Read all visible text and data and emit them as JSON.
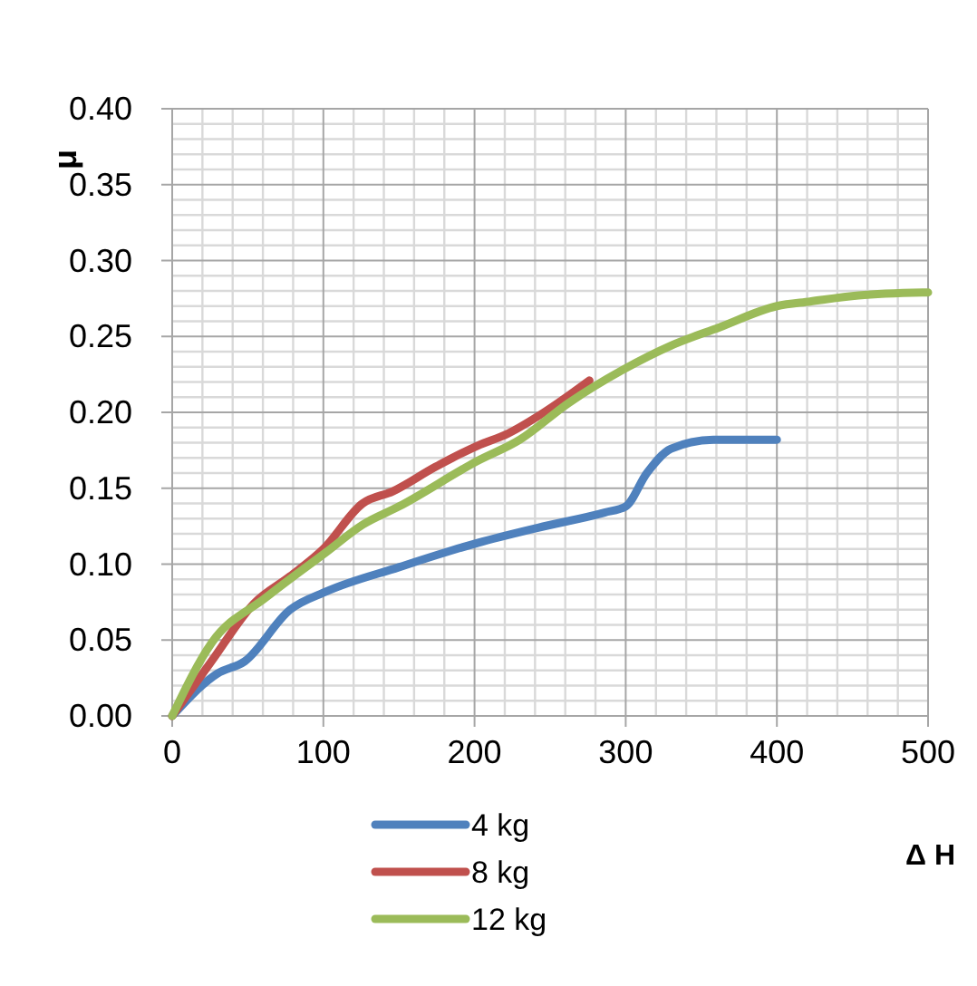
{
  "chart_data": {
    "type": "line",
    "ylabel": "μ",
    "xlabel": "Δ H",
    "xlim": [
      0,
      500
    ],
    "xticks": [
      0,
      100,
      200,
      300,
      400,
      500
    ],
    "ylim": [
      0,
      0.4
    ],
    "yticks": [
      {
        "value": 0,
        "label": "0.00"
      },
      {
        "value": 0.05,
        "label": "0.05"
      },
      {
        "value": 0.1,
        "label": "0.10"
      },
      {
        "value": 0.15,
        "label": "0.15"
      },
      {
        "value": 0.2,
        "label": "0.20"
      },
      {
        "value": 0.25,
        "label": "0.25"
      },
      {
        "value": 0.3,
        "label": "0.30"
      },
      {
        "value": 0.35,
        "label": "0.35"
      },
      {
        "value": 0.4,
        "label": "0.40"
      }
    ],
    "grid": true,
    "legend": "bottom",
    "marker": "none",
    "line_style": "solid",
    "series": [
      {
        "name": "4 kg",
        "color": "#4f81bd",
        "x": [
          0,
          30,
          48,
          78,
          102,
          150,
          202,
          242,
          286,
          300,
          314,
          330,
          358,
          400
        ],
        "values": [
          0,
          0.028,
          0.036,
          0.07,
          0.082,
          0.098,
          0.114,
          0.124,
          0.134,
          0.138,
          0.16,
          0.176,
          0.182,
          0.182
        ]
      },
      {
        "name": "8 kg",
        "color": "#c0504d",
        "x": [
          0,
          26,
          54,
          78,
          100,
          126,
          146,
          174,
          202,
          222,
          246,
          276
        ],
        "values": [
          0,
          0.036,
          0.074,
          0.092,
          0.11,
          0.14,
          0.148,
          0.164,
          0.178,
          0.186,
          0.2,
          0.221
        ]
      },
      {
        "name": "12 kg",
        "color": "#9bbb59",
        "x": [
          0,
          26,
          62,
          102,
          126,
          150,
          202,
          230,
          262,
          298,
          330,
          362,
          400,
          422,
          454,
          500
        ],
        "values": [
          0,
          0.048,
          0.078,
          0.108,
          0.126,
          0.138,
          0.168,
          0.182,
          0.206,
          0.228,
          0.244,
          0.256,
          0.27,
          0.273,
          0.277,
          0.279
        ]
      }
    ]
  }
}
